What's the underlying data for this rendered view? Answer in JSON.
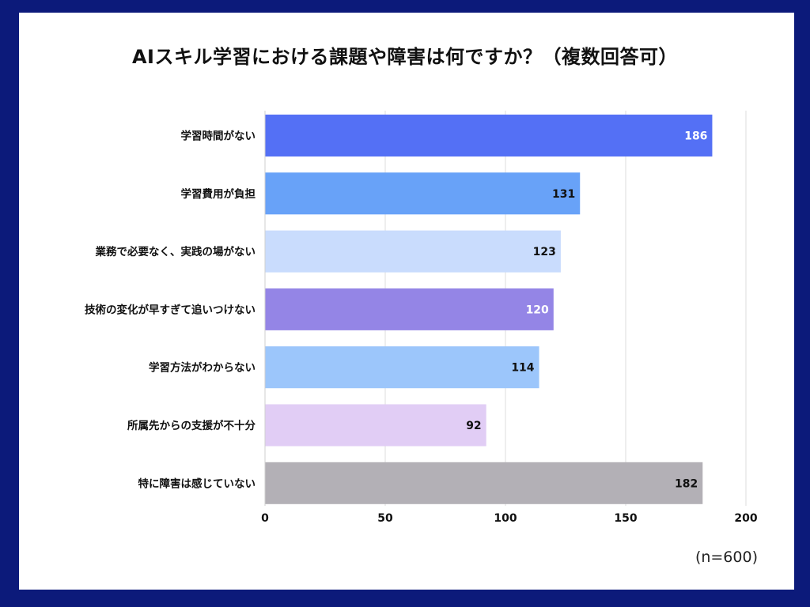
{
  "chart_data": {
    "type": "bar",
    "orientation": "horizontal",
    "title": "AIスキル学習における課題や障害は何ですか？（複数回答可）",
    "categories": [
      "学習時間がない",
      "学習費用が負担",
      "業務で必要なく、実践の場がない",
      "技術の変化が早すぎて追いつけない",
      "学習方法がわからない",
      "所属先からの支援が不十分",
      "特に障害は感じていない"
    ],
    "values": [
      186,
      131,
      123,
      120,
      114,
      92,
      182
    ],
    "colors": [
      "#5470f5",
      "#68a2f8",
      "#c9dcfd",
      "#9485e6",
      "#9cc6fb",
      "#e1cdf5",
      "#b3b0b6"
    ],
    "value_label_colors": [
      "#ffffff",
      "#111111",
      "#111111",
      "#ffffff",
      "#111111",
      "#111111",
      "#111111"
    ],
    "xlim": [
      0,
      200
    ],
    "xticks": [
      0,
      50,
      100,
      150,
      200
    ],
    "grid": "vertical",
    "note": "(n=600)"
  }
}
